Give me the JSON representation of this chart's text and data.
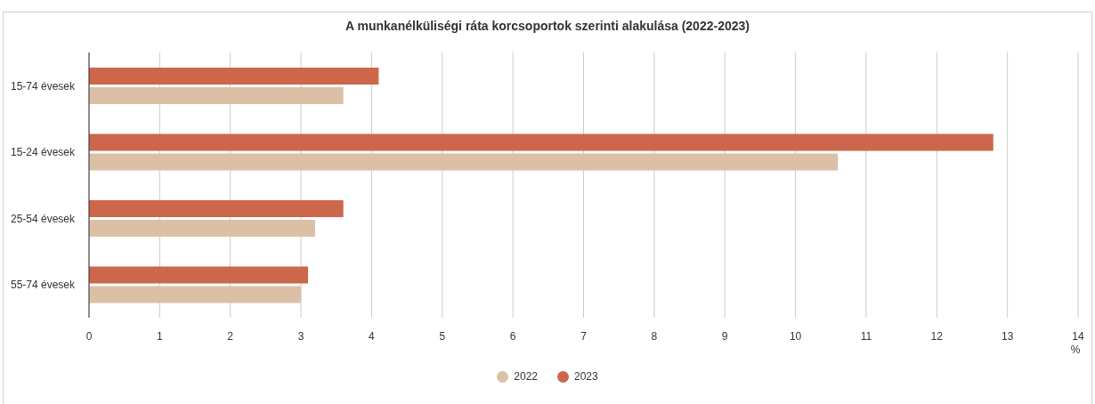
{
  "chart_data": {
    "type": "bar",
    "orientation": "horizontal",
    "title": "A munkanélküliségi ráta korcsoportok szerinti alakulása (2022-2023)",
    "xlabel": "%",
    "categories": [
      "15-74 évesek",
      "15-24 évesek",
      "25-54 évesek",
      "55-74 évesek"
    ],
    "series": [
      {
        "name": "2022",
        "color": "#dcc0a6",
        "values": [
          3.6,
          10.6,
          3.2,
          3.0
        ]
      },
      {
        "name": "2023",
        "color": "#cc674b",
        "values": [
          4.1,
          12.8,
          3.6,
          3.1
        ]
      }
    ],
    "xlim": [
      0,
      14
    ],
    "xticks": [
      0,
      1,
      2,
      3,
      4,
      5,
      6,
      7,
      8,
      9,
      10,
      11,
      12,
      13,
      14
    ],
    "grid": "x",
    "legend": "bottom"
  }
}
